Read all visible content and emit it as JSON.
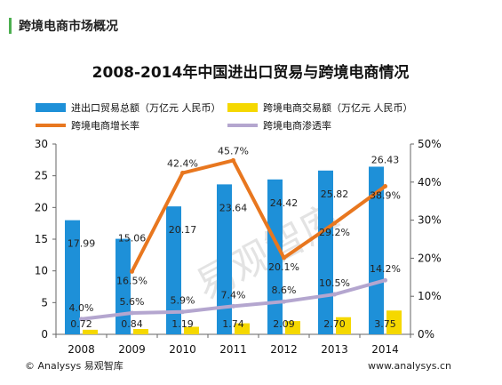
{
  "header": {
    "section_title": "跨境电商市场概况"
  },
  "chart_data": {
    "type": "bar",
    "title": "2008-2014年中国进出口贸易与跨境电商情况",
    "categories": [
      "2008",
      "2009",
      "2010",
      "2011",
      "2012",
      "2013",
      "2014"
    ],
    "series": [
      {
        "name": "进出口贸易总额（万亿元 人民币）",
        "type": "bar",
        "axis": "left",
        "color": "#1e90d8",
        "values": [
          17.99,
          15.06,
          20.17,
          23.64,
          24.42,
          25.82,
          26.43
        ],
        "labels": [
          "17.99",
          "15.06",
          "20.17",
          "23.64",
          "24.42",
          "25.82",
          "26.43"
        ]
      },
      {
        "name": "跨境电商交易额（万亿元 人民币）",
        "type": "bar",
        "axis": "left",
        "color": "#f5d800",
        "values": [
          0.72,
          0.84,
          1.19,
          1.74,
          2.09,
          2.7,
          3.75
        ],
        "labels": [
          "0.72",
          "0.84",
          "1.19",
          "1.74",
          "2.09",
          "2.70",
          "3.75"
        ]
      },
      {
        "name": "跨境电商增长率",
        "type": "line",
        "axis": "right",
        "color": "#e8771f",
        "values": [
          null,
          16.5,
          42.4,
          45.7,
          20.1,
          29.2,
          38.9
        ],
        "labels": [
          "",
          "16.5%",
          "42.4%",
          "45.7%",
          "20.1%",
          "29.2%",
          "38.9%"
        ]
      },
      {
        "name": "跨境电商渗透率",
        "type": "line",
        "axis": "right",
        "color": "#b4a6cf",
        "values": [
          4.0,
          5.6,
          5.9,
          7.4,
          8.6,
          10.5,
          14.2
        ],
        "labels": [
          "4.0%",
          "5.6%",
          "5.9%",
          "7.4%",
          "8.6%",
          "10.5%",
          "14.2%"
        ]
      }
    ],
    "y_left": {
      "min": 0,
      "max": 30,
      "ticks": [
        "0",
        "5",
        "10",
        "15",
        "20",
        "25",
        "30"
      ]
    },
    "y_right": {
      "min": 0,
      "max": 50,
      "ticks": [
        "0%",
        "10%",
        "20%",
        "30%",
        "40%",
        "50%"
      ]
    },
    "legend_position": "top",
    "grid": false
  },
  "footer": {
    "left": "© Analysys 易观智库",
    "right": "www.analysys.cn"
  },
  "watermark": "易观智库"
}
